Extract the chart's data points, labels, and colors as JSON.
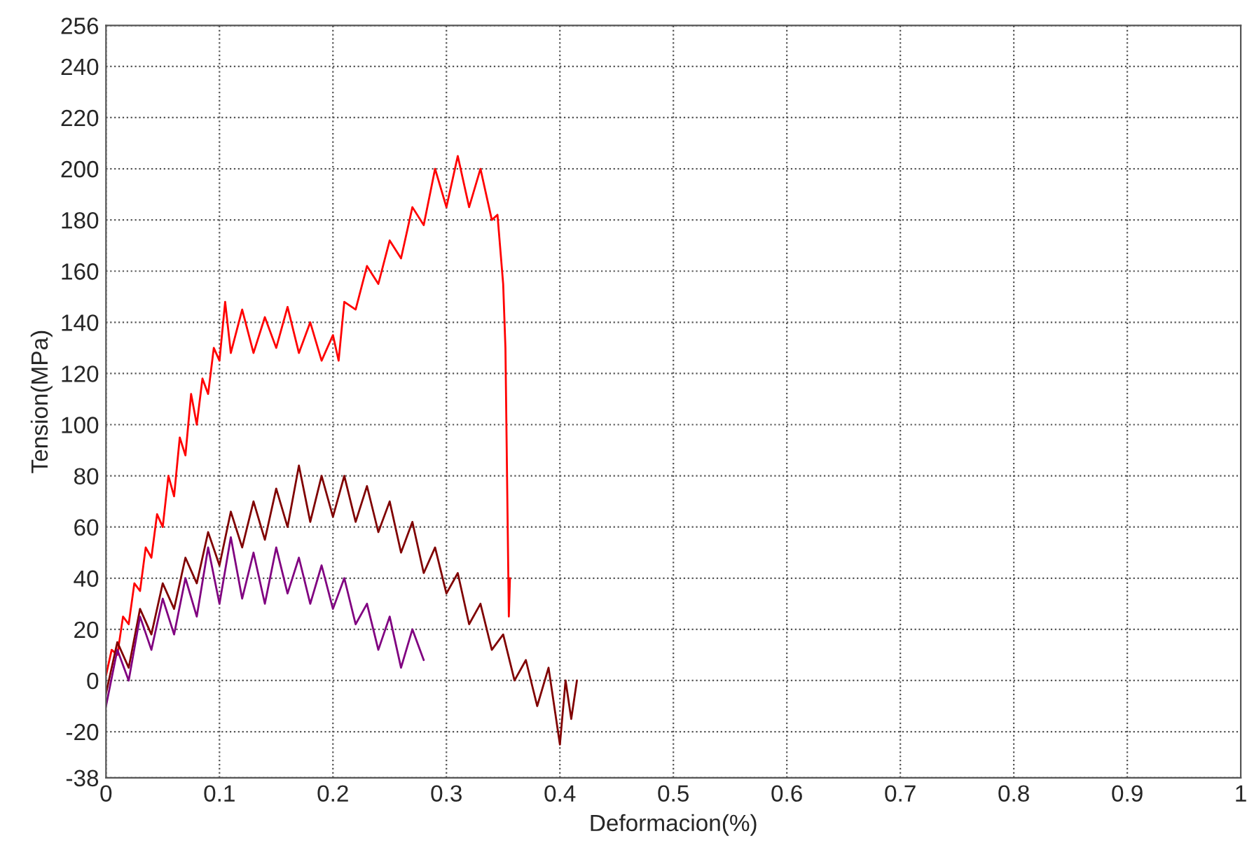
{
  "chart_data": {
    "type": "line",
    "xlabel": "Deformacion(%)",
    "ylabel": "Tension(MPa)",
    "xlim": [
      0,
      1
    ],
    "xticks": [
      0,
      0.1,
      0.2,
      0.3,
      0.4,
      0.5,
      0.6,
      0.7,
      0.8,
      0.9,
      1
    ],
    "ylim": [
      -38,
      256
    ],
    "yticks": [
      -38,
      -20,
      0,
      20,
      40,
      60,
      80,
      100,
      120,
      140,
      160,
      180,
      200,
      220,
      240,
      256
    ],
    "grid": true,
    "line_style": "solid",
    "marker": "none",
    "series": [
      {
        "color": "#ff0000",
        "x": [
          0,
          0.005,
          0.01,
          0.015,
          0.02,
          0.025,
          0.03,
          0.035,
          0.04,
          0.045,
          0.05,
          0.055,
          0.06,
          0.065,
          0.07,
          0.075,
          0.08,
          0.085,
          0.09,
          0.095,
          0.1,
          0.105,
          0.11,
          0.12,
          0.13,
          0.14,
          0.15,
          0.16,
          0.17,
          0.18,
          0.19,
          0.2,
          0.205,
          0.21,
          0.22,
          0.23,
          0.24,
          0.25,
          0.26,
          0.27,
          0.28,
          0.29,
          0.3,
          0.31,
          0.32,
          0.33,
          0.34,
          0.345,
          0.35,
          0.352,
          0.354,
          0.355,
          0.356
        ],
        "values": [
          2,
          12,
          10,
          25,
          22,
          38,
          35,
          52,
          48,
          65,
          60,
          80,
          72,
          95,
          88,
          112,
          100,
          118,
          112,
          130,
          125,
          148,
          128,
          145,
          128,
          142,
          130,
          146,
          128,
          140,
          125,
          135,
          125,
          148,
          145,
          162,
          155,
          172,
          165,
          185,
          178,
          200,
          185,
          205,
          185,
          200,
          180,
          182,
          155,
          130,
          60,
          25,
          40
        ]
      },
      {
        "color": "#800000",
        "x": [
          0,
          0.01,
          0.02,
          0.03,
          0.04,
          0.05,
          0.06,
          0.07,
          0.08,
          0.09,
          0.1,
          0.11,
          0.12,
          0.13,
          0.14,
          0.15,
          0.16,
          0.17,
          0.18,
          0.19,
          0.2,
          0.21,
          0.22,
          0.23,
          0.24,
          0.25,
          0.26,
          0.27,
          0.28,
          0.29,
          0.3,
          0.31,
          0.32,
          0.33,
          0.34,
          0.35,
          0.36,
          0.37,
          0.38,
          0.39,
          0.4,
          0.405,
          0.41,
          0.415
        ],
        "values": [
          -5,
          15,
          5,
          28,
          18,
          38,
          28,
          48,
          38,
          58,
          45,
          66,
          52,
          70,
          55,
          75,
          60,
          84,
          62,
          80,
          64,
          80,
          62,
          76,
          58,
          70,
          50,
          62,
          42,
          52,
          34,
          42,
          22,
          30,
          12,
          18,
          0,
          8,
          -10,
          5,
          -25,
          0,
          -15,
          0
        ]
      },
      {
        "color": "#800080",
        "x": [
          0,
          0.01,
          0.02,
          0.03,
          0.04,
          0.05,
          0.06,
          0.07,
          0.08,
          0.09,
          0.1,
          0.11,
          0.12,
          0.13,
          0.14,
          0.15,
          0.16,
          0.17,
          0.18,
          0.19,
          0.2,
          0.21,
          0.22,
          0.23,
          0.24,
          0.25,
          0.26,
          0.27,
          0.28
        ],
        "values": [
          -10,
          12,
          0,
          25,
          12,
          32,
          18,
          40,
          25,
          52,
          30,
          56,
          32,
          50,
          30,
          52,
          34,
          48,
          30,
          45,
          28,
          40,
          22,
          30,
          12,
          25,
          5,
          20,
          8
        ]
      }
    ]
  }
}
